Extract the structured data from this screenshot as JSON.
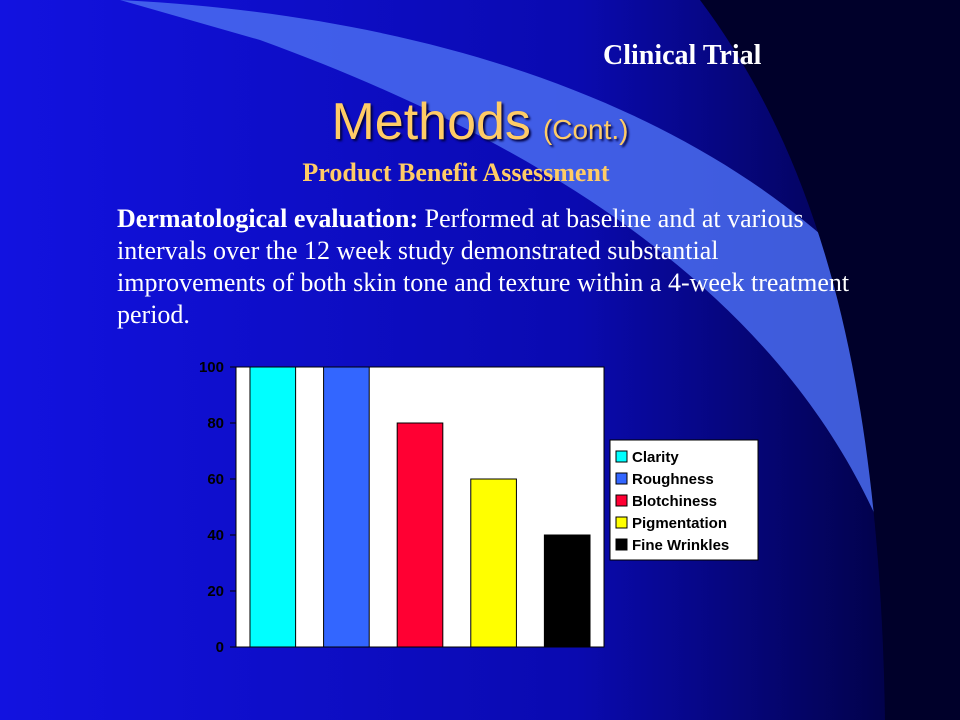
{
  "slide": {
    "header_label": "Clinical Trial",
    "title": "Methods",
    "title_suffix": "(Cont.)",
    "subtitle": "Product Benefit Assessment",
    "body_lead": "Dermatological evaluation:",
    "body_text": " Performed at baseline and at various intervals over the 12 week study demonstrated substantial improvements of both skin tone and texture within a 4-week treatment period."
  },
  "colors": {
    "background": "#1010d8",
    "title": "#ffcc66",
    "body_text": "#ffffff"
  },
  "chart_data": {
    "type": "bar",
    "series": [
      {
        "name": "Clarity",
        "value": 100,
        "color": "#00ffff"
      },
      {
        "name": "Roughness",
        "value": 100,
        "color": "#3366ff"
      },
      {
        "name": "Blotchiness",
        "value": 80,
        "color": "#ff0033"
      },
      {
        "name": "Pigmentation",
        "value": 60,
        "color": "#ffff00"
      },
      {
        "name": "Fine Wrinkles",
        "value": 40,
        "color": "#000000"
      }
    ],
    "yticks": [
      "0",
      "20",
      "40",
      "60",
      "80",
      "100"
    ],
    "ylim": [
      0,
      100
    ],
    "grid": false,
    "legend_position": "right"
  }
}
